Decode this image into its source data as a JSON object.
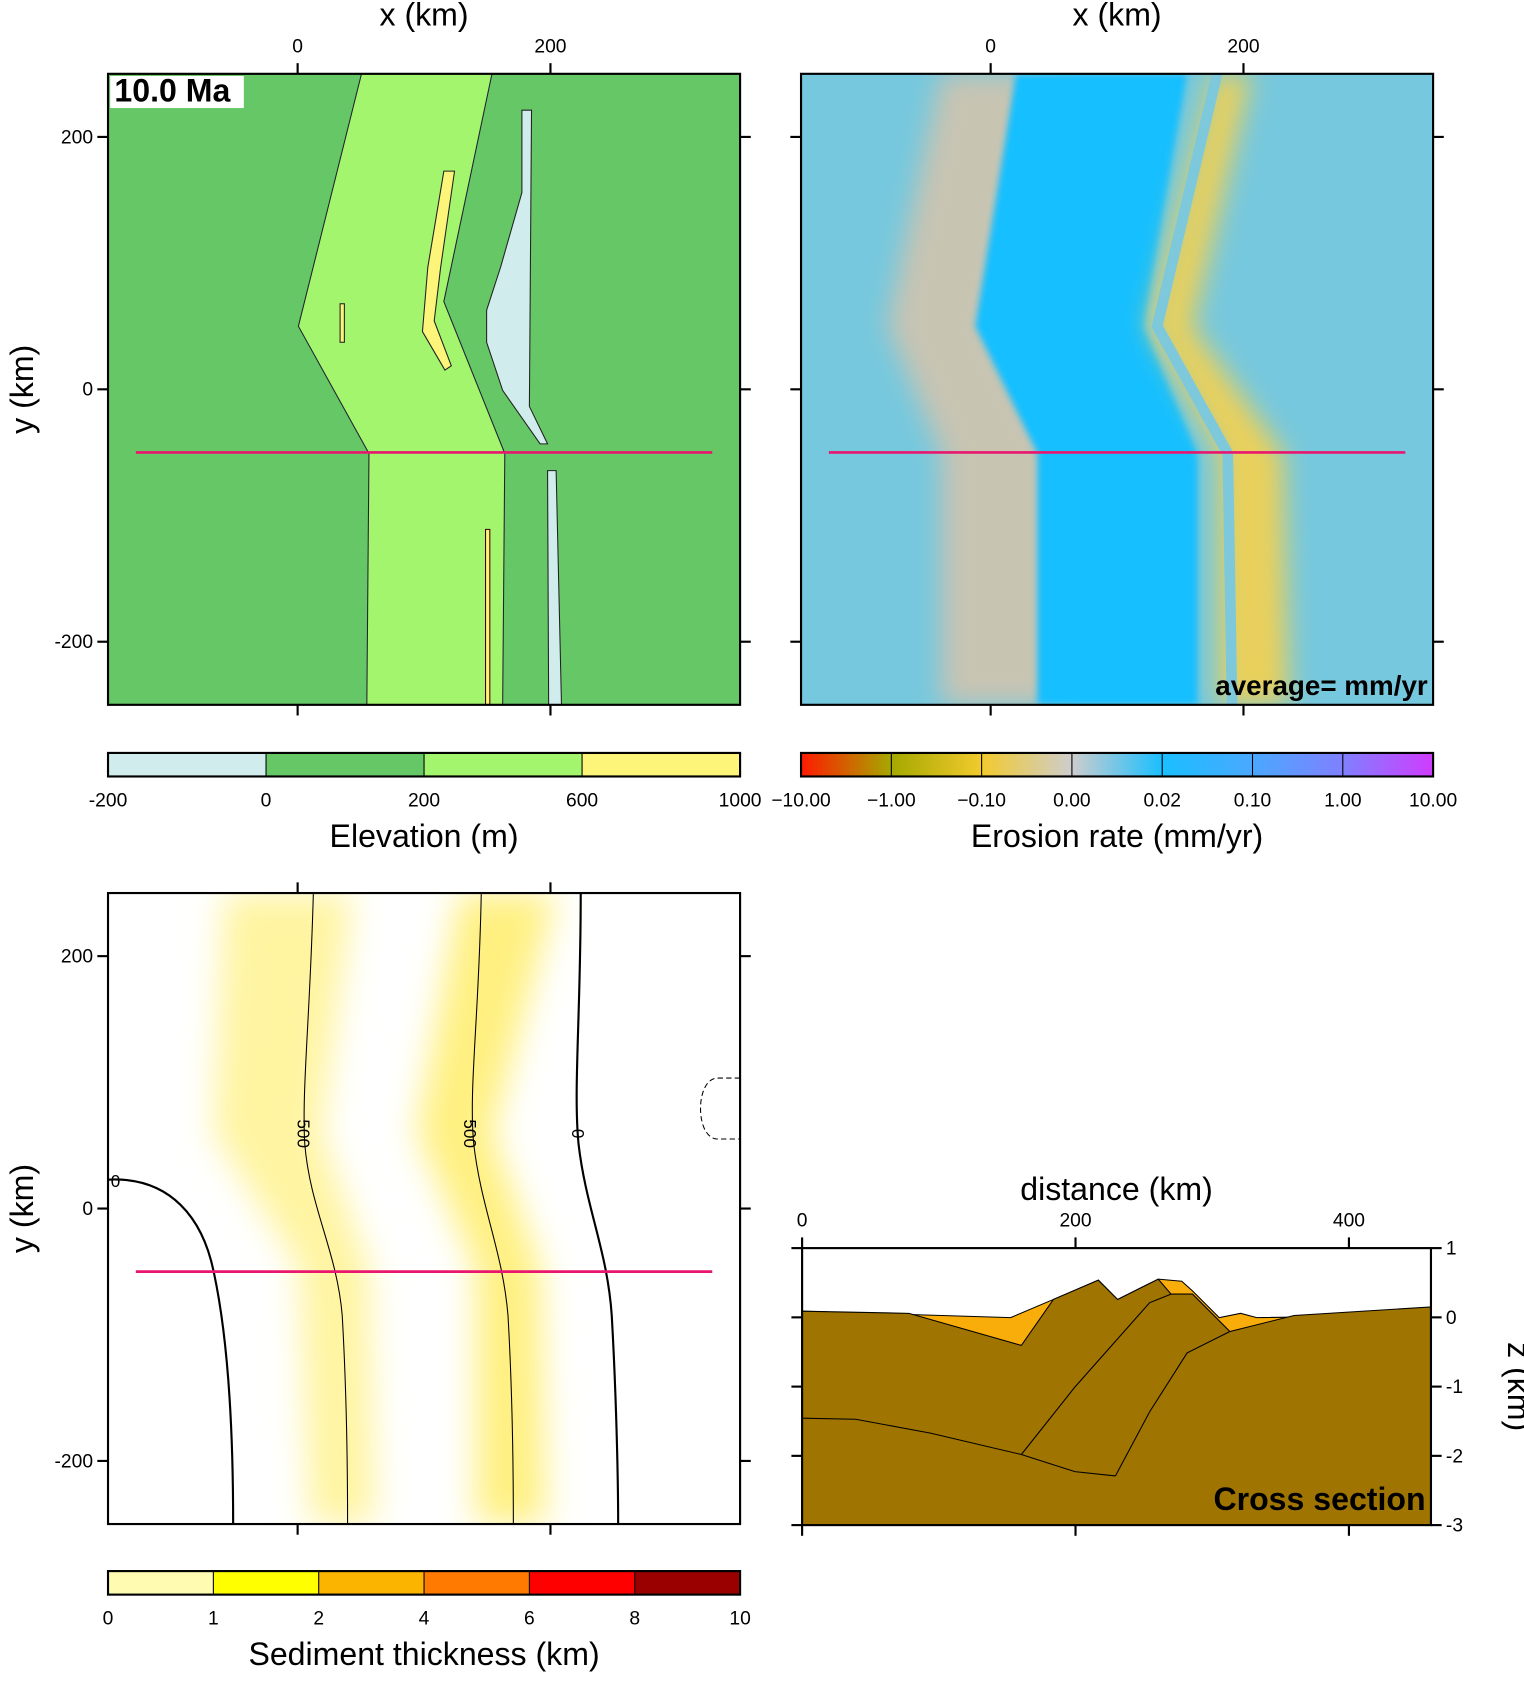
{
  "chart_data": [
    {
      "type": "map",
      "xlabel": "x (km)",
      "ylabel": "y (km)",
      "xlim": [
        -150,
        350
      ],
      "ylim": [
        -250,
        250
      ],
      "xticks": [
        0,
        200
      ],
      "yticks": [
        -200,
        0,
        200
      ],
      "label": "10.0 Ma",
      "profile_y": -50,
      "profile_color": "#e8166e",
      "colorbar": {
        "label": "Elevation (m)",
        "ticks": [
          -200,
          0,
          200,
          600,
          1000
        ],
        "colors": [
          "#d1ecec",
          "#66c766",
          "#a3f56e",
          "#fdf47a"
        ]
      }
    },
    {
      "type": "map",
      "xlabel": "x (km)",
      "xlim": [
        -150,
        350
      ],
      "ylim": [
        -250,
        250
      ],
      "xticks": [
        0,
        200
      ],
      "yticks": [
        -200,
        0,
        200
      ],
      "annotation": "average= mm/yr",
      "profile_y": -50,
      "profile_color": "#e8166e",
      "colorbar": {
        "label": "Erosion rate (mm/yr)",
        "gradient": true,
        "ticks": [
          {
            "value": -10,
            "label": "−10.00"
          },
          {
            "value": -1,
            "label": "−1.00"
          },
          {
            "value": -0.1,
            "label": "−0.10"
          },
          {
            "value": 0,
            "label": "0.00"
          },
          {
            "value": 0.02,
            "label": "0.02"
          },
          {
            "value": 0.1,
            "label": "0.10"
          },
          {
            "value": 1,
            "label": "1.00"
          },
          {
            "value": 10,
            "label": "10.00"
          }
        ],
        "colors": [
          "#ff1a00",
          "#a5a800",
          "#f2ca2e",
          "#cdcdcd",
          "#1abfff",
          "#4aa8ff",
          "#8080ff",
          "#d03cff"
        ]
      }
    },
    {
      "type": "map",
      "ylabel": "y (km)",
      "xlim": [
        -150,
        350
      ],
      "ylim": [
        -250,
        250
      ],
      "xticks": [
        0,
        200
      ],
      "yticks": [
        -200,
        0,
        200
      ],
      "profile_y": -50,
      "profile_color": "#e8166e",
      "contour_levels": [
        0,
        500,
        500,
        0
      ],
      "colorbar": {
        "label": "Sediment thickness (km)",
        "ticks": [
          0,
          1,
          2,
          4,
          6,
          8,
          10
        ],
        "colors": [
          "#fffbb0",
          "#ffff00",
          "#fbb400",
          "#fe7a00",
          "#fe0000",
          "#9b0000"
        ]
      }
    },
    {
      "type": "cross_section",
      "xlabel": "distance (km)",
      "ylabel": "z (km)",
      "xlim": [
        0,
        460
      ],
      "ylim": [
        -3,
        1
      ],
      "xticks": [
        0,
        200,
        400
      ],
      "yticks": [
        -3,
        -2,
        -1,
        0,
        1
      ],
      "annotation": "Cross section"
    }
  ]
}
